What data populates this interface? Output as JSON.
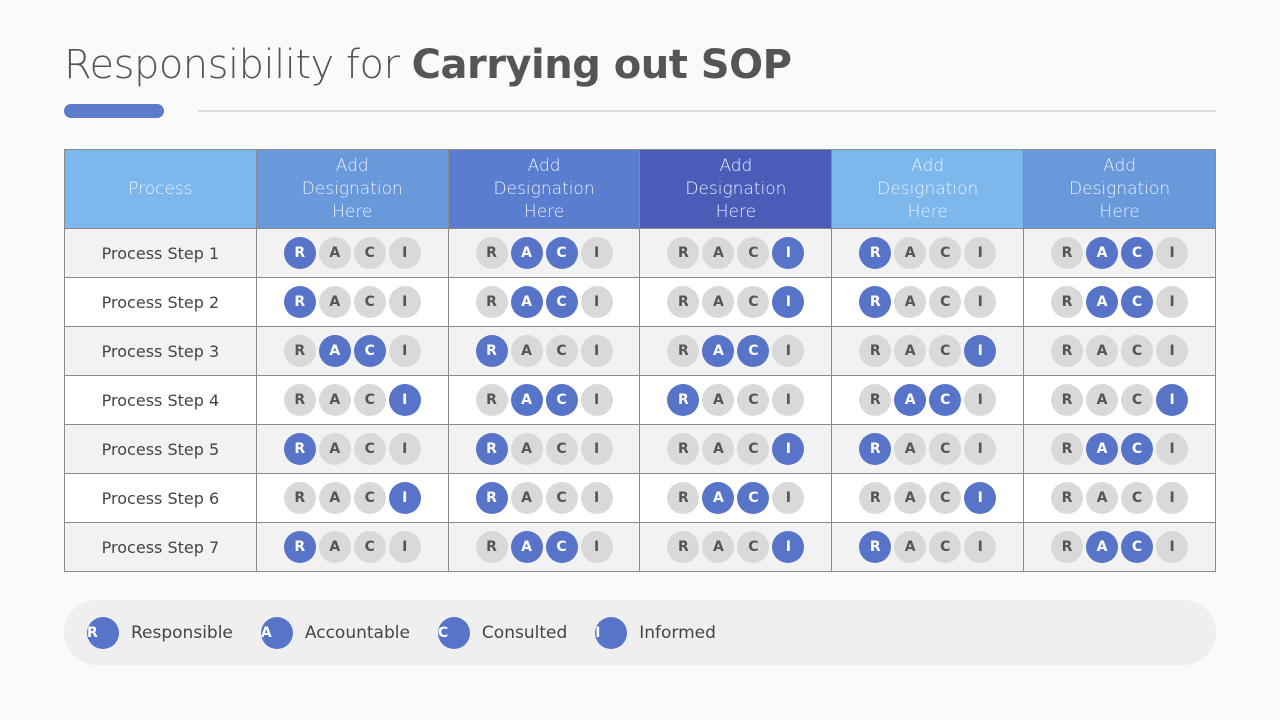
{
  "title": {
    "light": "Responsibility for ",
    "bold": "Carrying out SOP"
  },
  "colors": {
    "active": "#5874c8",
    "inactive": "#d9d9d9",
    "headers": [
      "#7cb8ec",
      "#6a99db",
      "#5b7dd0",
      "#4a5bb8",
      "#7cb8ec",
      "#6a99db"
    ]
  },
  "table": {
    "headers": [
      "Process",
      "Add Designation Here",
      "Add Designation Here",
      "Add Designation Here",
      "Add Designation Here",
      "Add Designation Here"
    ],
    "letters": [
      "R",
      "A",
      "C",
      "I"
    ],
    "rows": [
      {
        "label": "Process Step 1",
        "active": [
          "R",
          "AC",
          "I",
          "R",
          "AC"
        ]
      },
      {
        "label": "Process Step 2",
        "active": [
          "R",
          "AC",
          "I",
          "R",
          "AC"
        ]
      },
      {
        "label": "Process Step 3",
        "active": [
          "AC",
          "R",
          "AC",
          "I",
          ""
        ]
      },
      {
        "label": "Process Step 4",
        "active": [
          "I",
          "AC",
          "R",
          "AC",
          "I"
        ]
      },
      {
        "label": "Process Step 5",
        "active": [
          "R",
          "R",
          "I",
          "R",
          "AC"
        ]
      },
      {
        "label": "Process Step 6",
        "active": [
          "I",
          "R",
          "AC",
          "I",
          ""
        ]
      },
      {
        "label": "Process Step 7",
        "active": [
          "R",
          "AC",
          "I",
          "R",
          "AC"
        ]
      }
    ]
  },
  "legend": [
    {
      "letter": "R",
      "label": "Responsible"
    },
    {
      "letter": "A",
      "label": "Accountable"
    },
    {
      "letter": "C",
      "label": "Consulted"
    },
    {
      "letter": "I",
      "label": "Informed"
    }
  ]
}
